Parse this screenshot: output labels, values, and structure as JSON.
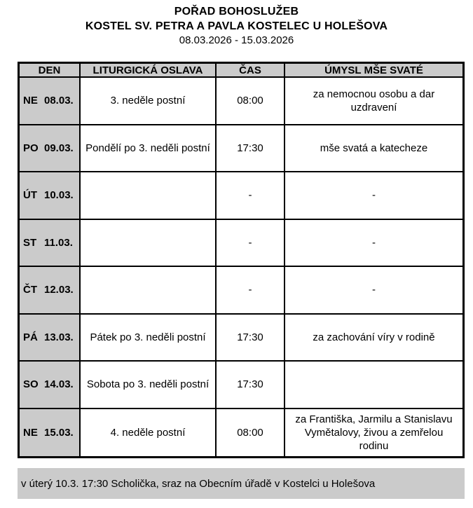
{
  "page": {
    "title_line1": "POŘAD BOHOSLUŽEB",
    "title_line2": "KOSTEL SV. PETRA A PAVLA KOSTELEC U HOLEŠOVA",
    "date_range": "08.03.2026 - 15.03.2026"
  },
  "table": {
    "headers": {
      "day": "DEN",
      "celebration": "LITURGICKÁ OSLAVA",
      "time": "ČAS",
      "intention": "ÚMYSL MŠE SVATÉ"
    },
    "rows": [
      {
        "day": "NE",
        "date": "08.03.",
        "celebration": "3. neděle postní",
        "time": "08:00",
        "intention": "za nemocnou osobu a dar uzdravení"
      },
      {
        "day": "PO",
        "date": "09.03.",
        "celebration": "Pondělí po 3. neděli postní",
        "time": "17:30",
        "intention": "mše svatá a katecheze"
      },
      {
        "day": "ÚT",
        "date": "10.03.",
        "celebration": "",
        "time": "-",
        "intention": "-"
      },
      {
        "day": "ST",
        "date": "11.03.",
        "celebration": "",
        "time": "-",
        "intention": "-"
      },
      {
        "day": "ČT",
        "date": "12.03.",
        "celebration": "",
        "time": "-",
        "intention": "-"
      },
      {
        "day": "PÁ",
        "date": "13.03.",
        "celebration": "Pátek po 3. neděli postní",
        "time": "17:30",
        "intention": "za zachování víry v rodině"
      },
      {
        "day": "SO",
        "date": "14.03.",
        "celebration": "Sobota po 3. neděli postní",
        "time": "17:30",
        "intention": ""
      },
      {
        "day": "NE",
        "date": "15.03.",
        "celebration": "4. neděle postní",
        "time": "08:00",
        "intention": "za Františka, Jarmilu a Stanislavu Vymětalovy, živou a zemřelou rodinu"
      }
    ]
  },
  "footer": {
    "note": "v úterý 10.3. 17:30 Scholička, sraz na Obecním úřadě v Kostelci u Holešova"
  },
  "colors": {
    "gray_bg": "#cbcbcb",
    "border": "#000000"
  }
}
